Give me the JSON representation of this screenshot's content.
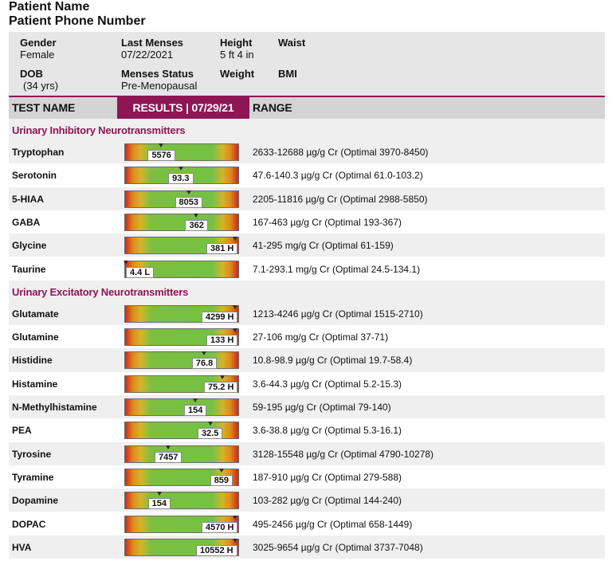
{
  "header": {
    "patient_name": "Patient Name",
    "patient_phone": "Patient Phone Number"
  },
  "info": {
    "gender_label": "Gender",
    "gender": "Female",
    "last_menses_label": "Last Menses",
    "last_menses": "07/22/2021",
    "height_label": "Height",
    "height": "5 ft 4 in",
    "waist_label": "Waist",
    "dob_label": "DOB",
    "age": "(34 yrs)",
    "menses_status_label": "Menses Status",
    "menses_status": "Pre-Menopausal",
    "weight_label": "Weight",
    "bmi_label": "BMI"
  },
  "table_header": {
    "test_name": "TEST NAME",
    "results": "RESULTS | 07/29/21",
    "range": "RANGE"
  },
  "sections": [
    {
      "title": "Urinary Inhibitory Neurotransmitters",
      "rows": [
        {
          "name": "Tryptophan",
          "value": "5576",
          "level": 0.32,
          "range": "2633-12688 µg/g Cr (Optimal 3970-8450)"
        },
        {
          "name": "Serotonin",
          "value": "93.3",
          "level": 0.49,
          "range": "47.6-140.3 µg/g Cr (Optimal 61.0-103.2)"
        },
        {
          "name": "5-HIAA",
          "value": "8053",
          "level": 0.56,
          "range": "2205-11816 µg/g Cr (Optimal 2988-5850)"
        },
        {
          "name": "GABA",
          "value": "362",
          "level": 0.63,
          "range": "167-463 µg/g Cr (Optimal 193-367)"
        },
        {
          "name": "Glycine",
          "value": "381 H",
          "level": 0.97,
          "range": "41-295 mg/g Cr (Optimal 61-159)"
        },
        {
          "name": "Taurine",
          "value": "4.4 L",
          "level": 0.01,
          "range": "7.1-293.1 mg/g Cr (Optimal 24.5-134.1)"
        }
      ]
    },
    {
      "title": "Urinary Excitatory Neurotransmitters",
      "rows": [
        {
          "name": "Glutamate",
          "value": "4299 H",
          "level": 0.97,
          "range": "1213-4246 µg/g Cr (Optimal 1515-2710)"
        },
        {
          "name": "Glutamine",
          "value": "133 H",
          "level": 0.97,
          "range": "27-106 mg/g Cr (Optimal 37-71)"
        },
        {
          "name": "Histidine",
          "value": "76.8",
          "level": 0.7,
          "range": "10.8-98.9 µg/g Cr (Optimal 19.7-58.4)"
        },
        {
          "name": "Histamine",
          "value": "75.2 H",
          "level": 0.86,
          "range": "3.6-44.3 µg/g Cr (Optimal 5.2-15.3)"
        },
        {
          "name": "N-Methylhistamine",
          "value": "154",
          "level": 0.62,
          "range": "59-195 µg/g Cr (Optimal 79-140)"
        },
        {
          "name": "PEA",
          "value": "32.5",
          "level": 0.75,
          "range": "3.6-38.8 µg/g Cr (Optimal 5.3-16.1)"
        },
        {
          "name": "Tyrosine",
          "value": "7457",
          "level": 0.38,
          "range": "3128-15548 µg/g Cr (Optimal 4790-10278)"
        },
        {
          "name": "Tyramine",
          "value": "859",
          "level": 0.85,
          "range": "187-910 µg/g Cr (Optimal 279-588)"
        },
        {
          "name": "Dopamine",
          "value": "154",
          "level": 0.3,
          "range": "103-282 µg/g Cr (Optimal 144-240)"
        },
        {
          "name": "DOPAC",
          "value": "4570 H",
          "level": 0.97,
          "range": "495-2456 µg/g Cr (Optimal 658-1449)"
        },
        {
          "name": "HVA",
          "value": "10552 H",
          "level": 0.97,
          "range": "3025-9654 µg/g Cr (Optimal 3737-7048)"
        }
      ]
    }
  ]
}
